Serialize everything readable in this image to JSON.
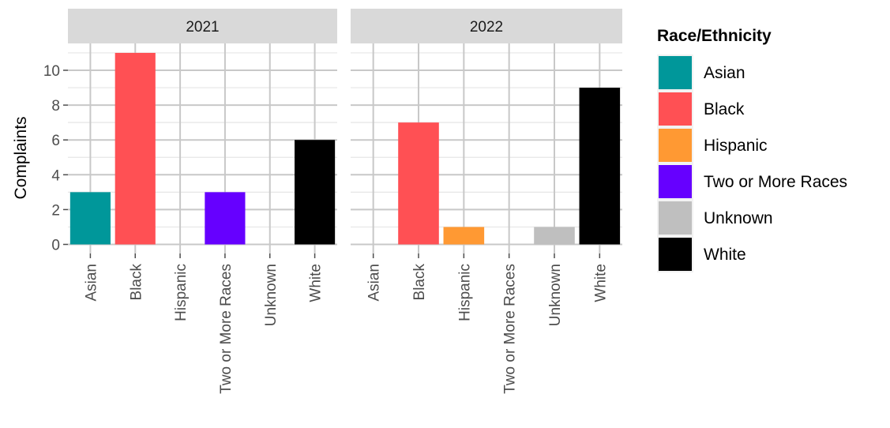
{
  "chart_data": {
    "type": "bar",
    "ylabel": "Complaints",
    "xlabel": "",
    "ylim": [
      0,
      11.55
    ],
    "yticks": [
      0,
      2,
      4,
      6,
      8,
      10
    ],
    "grid": true,
    "legend_position": "right",
    "categories": [
      "Asian",
      "Black",
      "Hispanic",
      "Two or More Races",
      "Unknown",
      "White"
    ],
    "panels": [
      {
        "facet": "2021",
        "values": [
          3,
          11,
          0,
          3,
          0,
          6
        ]
      },
      {
        "facet": "2022",
        "values": [
          0,
          7,
          1,
          0,
          1,
          9
        ]
      }
    ],
    "legend": {
      "title": "Race/Ethnicity",
      "entries": [
        {
          "label": "Asian",
          "color": "#00979a"
        },
        {
          "label": "Black",
          "color": "#ff5054"
        },
        {
          "label": "Hispanic",
          "color": "#ff9933"
        },
        {
          "label": "Two or More Races",
          "color": "#6600ff"
        },
        {
          "label": "Unknown",
          "color": "#bfbfbf"
        },
        {
          "label": "White",
          "color": "#000000"
        }
      ]
    },
    "colors": {
      "strip_background": "#d9d9d9",
      "grid_major": "#c8c8c8",
      "grid_minor": "#e6e6e6",
      "axis_tick": "#4d4d4d"
    }
  }
}
